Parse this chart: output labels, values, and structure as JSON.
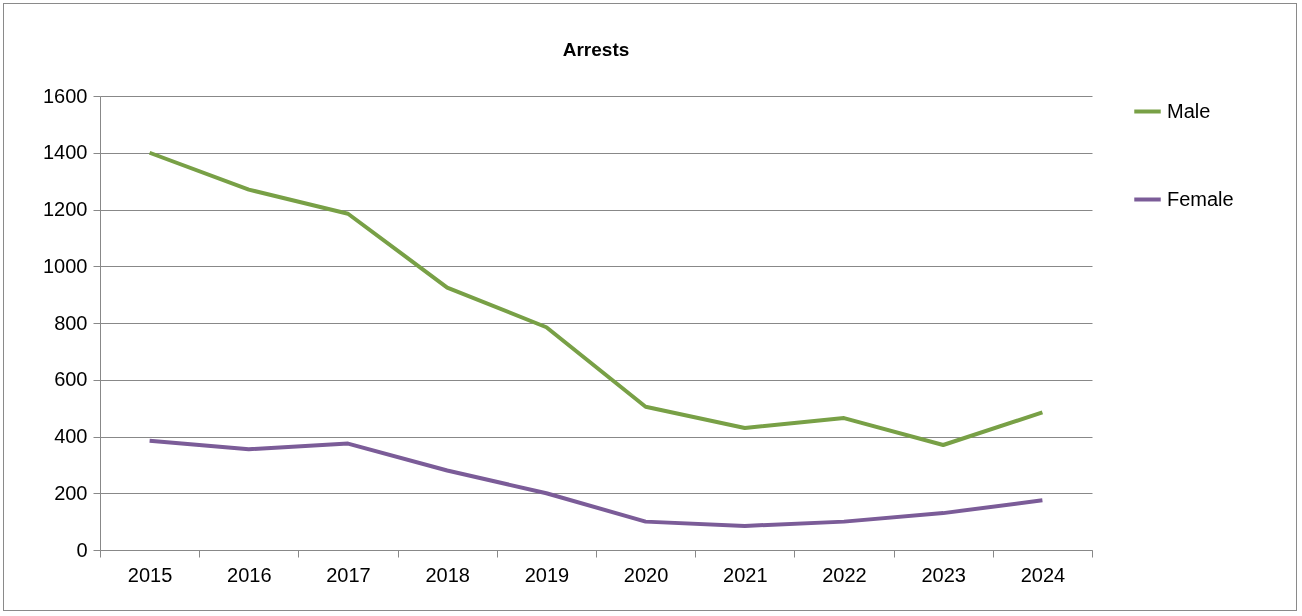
{
  "chart_data": {
    "type": "line",
    "title": "Arrests",
    "categories": [
      "2015",
      "2016",
      "2017",
      "2018",
      "2019",
      "2020",
      "2021",
      "2022",
      "2023",
      "2024"
    ],
    "series": [
      {
        "name": "Male",
        "color": "#78a046",
        "values": [
          1400,
          1270,
          1185,
          925,
          785,
          505,
          430,
          465,
          370,
          485
        ]
      },
      {
        "name": "Female",
        "color": "#7b5c98",
        "values": [
          385,
          355,
          375,
          280,
          200,
          100,
          85,
          100,
          130,
          175
        ]
      }
    ],
    "ylim": [
      0,
      1600
    ],
    "yticks": [
      0,
      200,
      400,
      600,
      800,
      1000,
      1200,
      1400,
      1600
    ],
    "grid": "y",
    "legend": "top right",
    "marker": "none",
    "line_style": "solid"
  }
}
